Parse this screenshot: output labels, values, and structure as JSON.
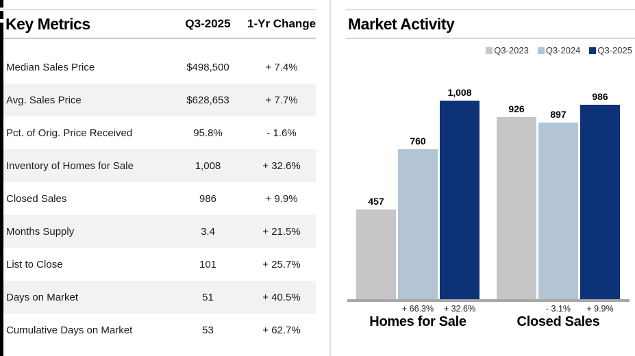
{
  "key_metrics": {
    "title": "Key Metrics"
  },
  "market_activity": {
    "title": "Market Activity"
  },
  "chart_data": [
    {
      "type": "table",
      "title": "Key Metrics",
      "columns": [
        "",
        "Q3-2025",
        "1-Yr Change"
      ],
      "rows": [
        [
          "Median Sales Price",
          "$498,500",
          "+ 7.4%"
        ],
        [
          "Avg. Sales Price",
          "$628,653",
          "+ 7.7%"
        ],
        [
          "Pct. of Orig. Price Received",
          "95.8%",
          "- 1.6%"
        ],
        [
          "Inventory of Homes for Sale",
          "1,008",
          "+ 32.6%"
        ],
        [
          "Closed Sales",
          "986",
          "+ 9.9%"
        ],
        [
          "Months Supply",
          "3.4",
          "+ 21.5%"
        ],
        [
          "List to Close",
          "101",
          "+ 25.7%"
        ],
        [
          "Days on Market",
          "51",
          "+ 40.5%"
        ],
        [
          "Cumulative Days on Market",
          "53",
          "+ 62.7%"
        ]
      ],
      "stripe_color": "#f2f2f2"
    },
    {
      "type": "bar",
      "title": "Market Activity",
      "categories": [
        "Homes for Sale",
        "Closed Sales"
      ],
      "series": [
        {
          "name": "Q3-2023",
          "color": "#c6c6c6",
          "values": [
            457,
            926
          ]
        },
        {
          "name": "Q3-2024",
          "color": "#b3c4d4",
          "values": [
            760,
            897
          ]
        },
        {
          "name": "Q3-2025",
          "color": "#0d3278",
          "values": [
            1008,
            986
          ]
        }
      ],
      "value_labels": [
        [
          "457",
          "760",
          "1,008"
        ],
        [
          "926",
          "897",
          "986"
        ]
      ],
      "pct_change_labels": [
        [
          "+ 66.3%",
          "+ 32.6%"
        ],
        [
          "- 3.1%",
          "+ 9.9%"
        ]
      ],
      "ylim": [
        0,
        1040
      ],
      "grid": false,
      "legend_position": "top-right",
      "axis_color": "#a8a8a8"
    }
  ]
}
